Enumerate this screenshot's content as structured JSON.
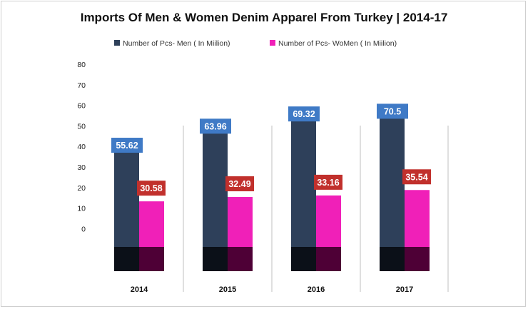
{
  "chart_data": {
    "type": "bar",
    "title": "Imports Of Men & Women Denim Apparel From Turkey | 2014-17",
    "categories": [
      "2014",
      "2015",
      "2016",
      "2017"
    ],
    "series": [
      {
        "name": "Number of Pcs- Men ( In Miilion)",
        "values": [
          55.62,
          63.96,
          69.32,
          70.5
        ],
        "labels": [
          "55.62",
          "63.96",
          "69.32",
          "70.5"
        ]
      },
      {
        "name": "Number of Pcs- WoMen ( In Miilion)",
        "values": [
          30.58,
          32.49,
          33.16,
          35.54
        ],
        "labels": [
          "30.58",
          "32.49",
          "33.16",
          "35.54"
        ]
      }
    ],
    "y_ticks": [
      "80",
      "70",
      "60",
      "50",
      "40",
      "30",
      "20",
      "10",
      "0"
    ],
    "ylim": [
      0,
      80
    ],
    "xlabel": "",
    "ylabel": "",
    "grid": false,
    "legend_position": "top",
    "colors": {
      "men": "#2e405a",
      "women": "#f020b8",
      "men_base": "#0b1018",
      "women_base": "#4e0036",
      "men_label": "#3f7ac6",
      "women_label": "#c1302c"
    }
  }
}
